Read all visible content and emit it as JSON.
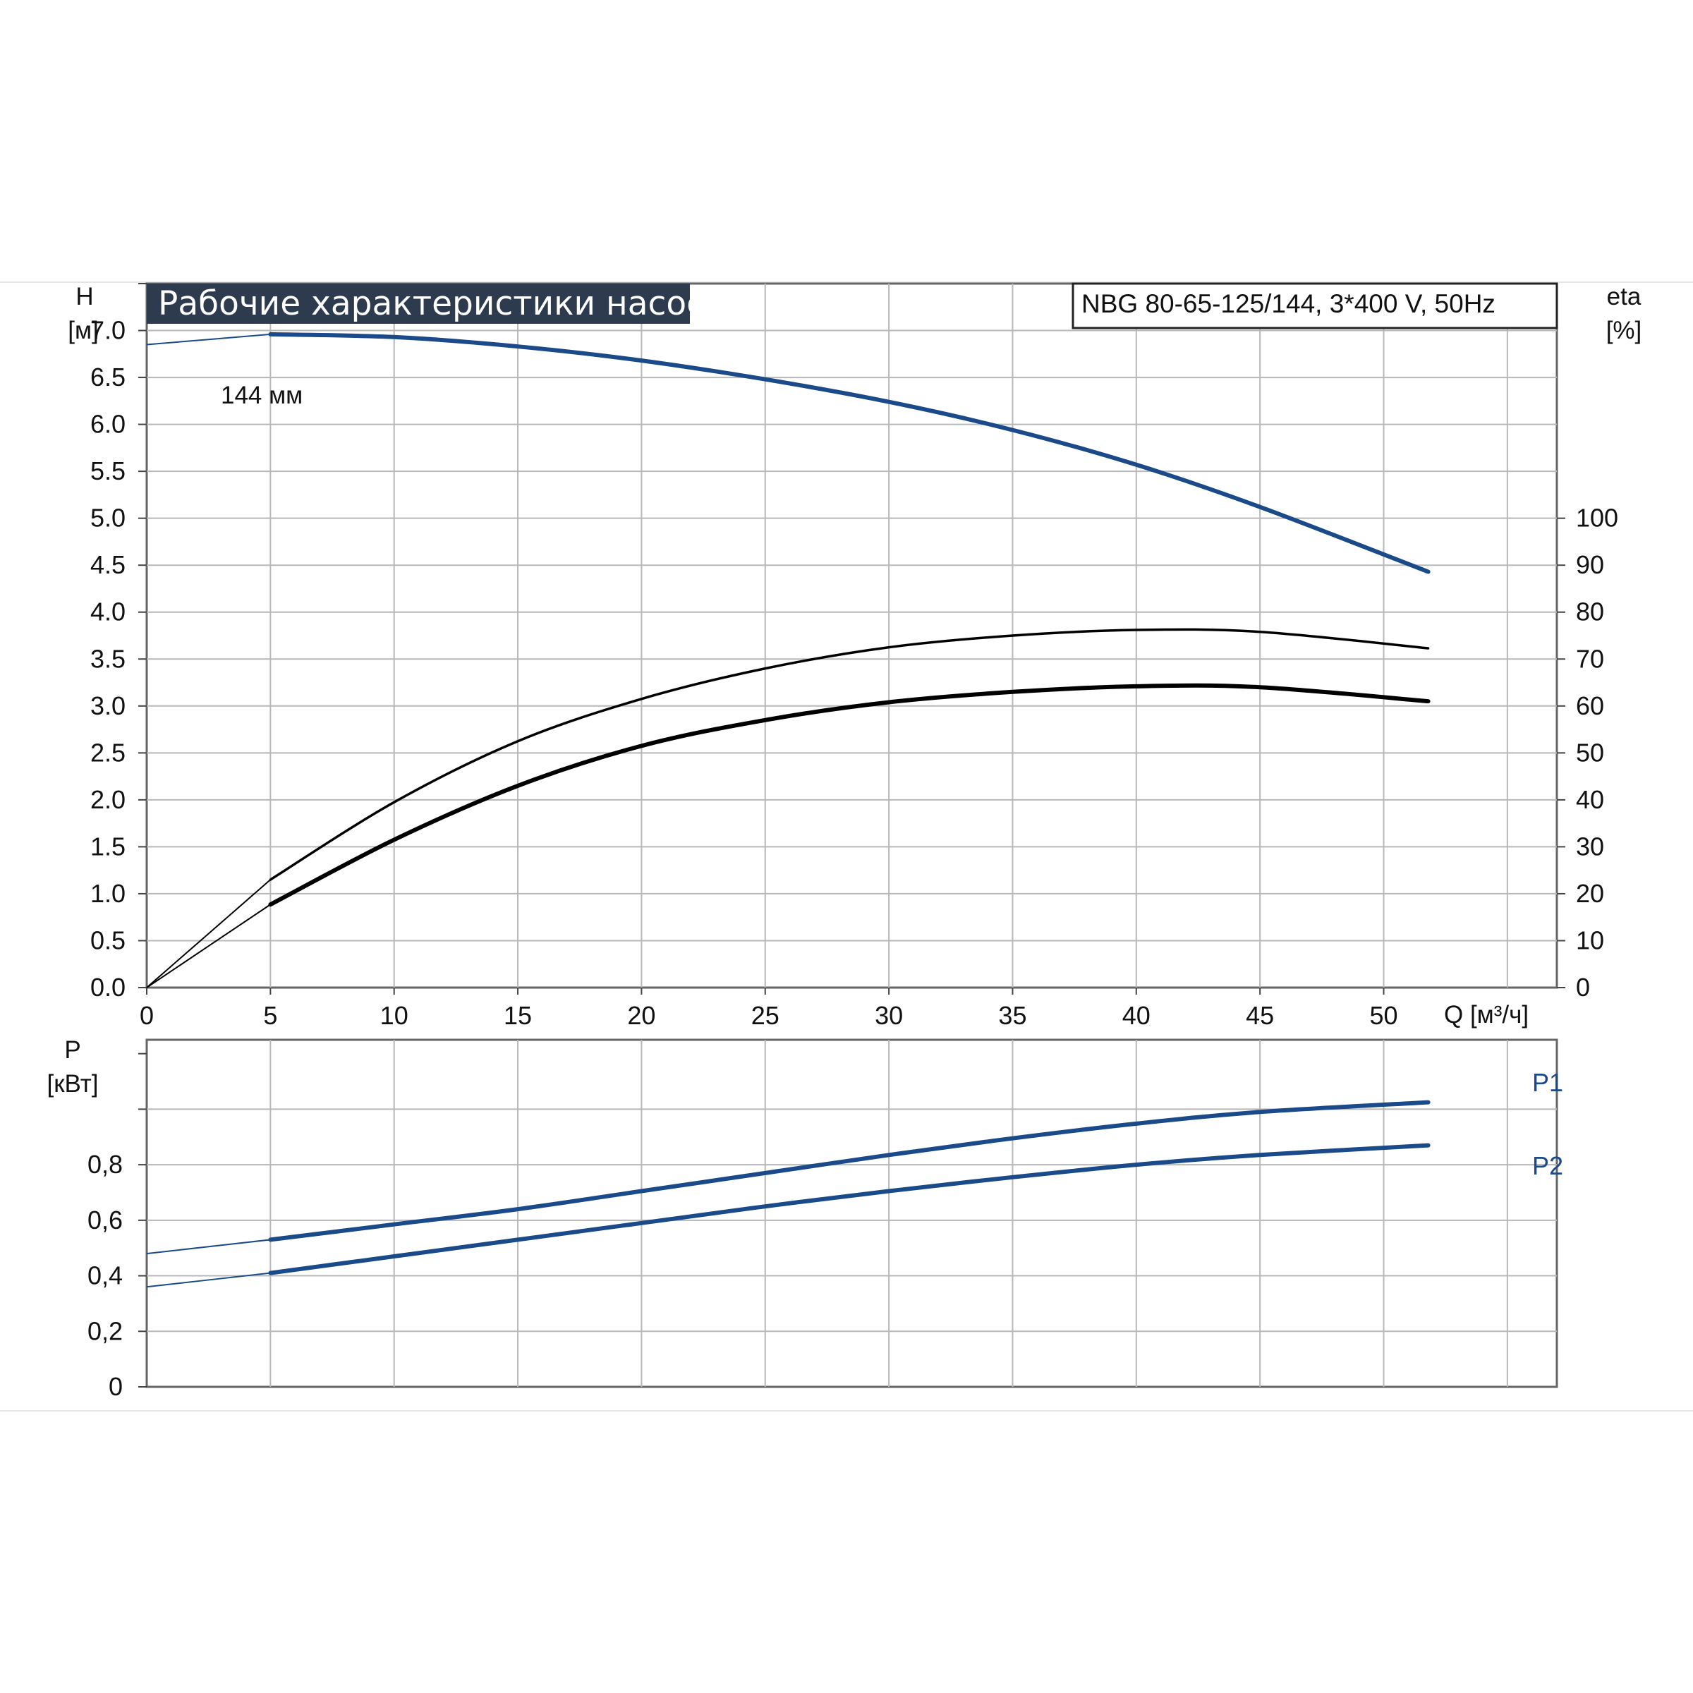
{
  "chart_data": [
    {
      "type": "line",
      "title": "Рабочие характеристики насоса",
      "subtitle": "NBG 80-65-125/144, 3*400 V, 50Hz",
      "ylabel": "H",
      "ylabel_unit": "[м]",
      "y2label": "eta",
      "y2label_unit": "[%]",
      "xlabel": "Q [м³/ч]",
      "xlim": [
        0,
        57
      ],
      "ylim": [
        0,
        7.5
      ],
      "y2lim": [
        0,
        100
      ],
      "x_ticks": [
        "0",
        "5",
        "10",
        "15",
        "20",
        "25",
        "30",
        "35",
        "40",
        "45",
        "50"
      ],
      "y_ticks": [
        "0.0",
        "0.5",
        "1.0",
        "1.5",
        "2.0",
        "2.5",
        "3.0",
        "3.5",
        "4.0",
        "4.5",
        "5.0",
        "5.5",
        "6.0",
        "6.5",
        "7.0"
      ],
      "y2_ticks": [
        "0",
        "10",
        "20",
        "30",
        "40",
        "50",
        "60",
        "70",
        "80",
        "90",
        "100"
      ],
      "grid": true,
      "annotation": "144 мм",
      "series": [
        {
          "name": "H",
          "axis": "left",
          "color": "#1a4a8a",
          "x": [
            0,
            5,
            10,
            15,
            20,
            25,
            30,
            35,
            40,
            45,
            51.8
          ],
          "values": [
            6.85,
            6.96,
            6.93,
            6.83,
            6.68,
            6.48,
            6.24,
            5.94,
            5.57,
            5.12,
            4.43
          ]
        },
        {
          "name": "",
          "axis": "right",
          "color": "#000000",
          "x": [
            0,
            5,
            10,
            15,
            20,
            25,
            30,
            35,
            40,
            45,
            51.8
          ],
          "values": [
            0,
            23,
            39.5,
            52.5,
            61.5,
            68,
            72.5,
            75,
            76.2,
            75.8,
            72.3
          ]
        },
        {
          "name": "",
          "axis": "right",
          "color": "#000000",
          "x": [
            0,
            5,
            10,
            15,
            20,
            25,
            30,
            35,
            40,
            45,
            51.8
          ],
          "values": [
            0,
            17.7,
            31.5,
            43,
            51.5,
            57,
            60.8,
            63,
            64.2,
            64,
            61
          ]
        }
      ]
    },
    {
      "type": "line",
      "ylabel": "P",
      "ylabel_unit": "[кВт]",
      "xlim": [
        0,
        57
      ],
      "ylim": [
        0,
        1.25
      ],
      "y_ticks": [
        "0",
        "0,2",
        "0,4",
        "0,6",
        "0,8"
      ],
      "grid": true,
      "series": [
        {
          "name": "P1",
          "color": "#1a4a8a",
          "x": [
            0,
            5,
            10,
            15,
            20,
            25,
            30,
            35,
            40,
            45,
            51.8
          ],
          "values": [
            0.48,
            0.53,
            0.585,
            0.64,
            0.705,
            0.77,
            0.835,
            0.895,
            0.948,
            0.99,
            1.025
          ]
        },
        {
          "name": "P2",
          "color": "#1a4a8a",
          "x": [
            0,
            5,
            10,
            15,
            20,
            25,
            30,
            35,
            40,
            45,
            51.8
          ],
          "values": [
            0.36,
            0.41,
            0.47,
            0.53,
            0.59,
            0.65,
            0.705,
            0.755,
            0.8,
            0.835,
            0.87
          ]
        }
      ]
    }
  ]
}
